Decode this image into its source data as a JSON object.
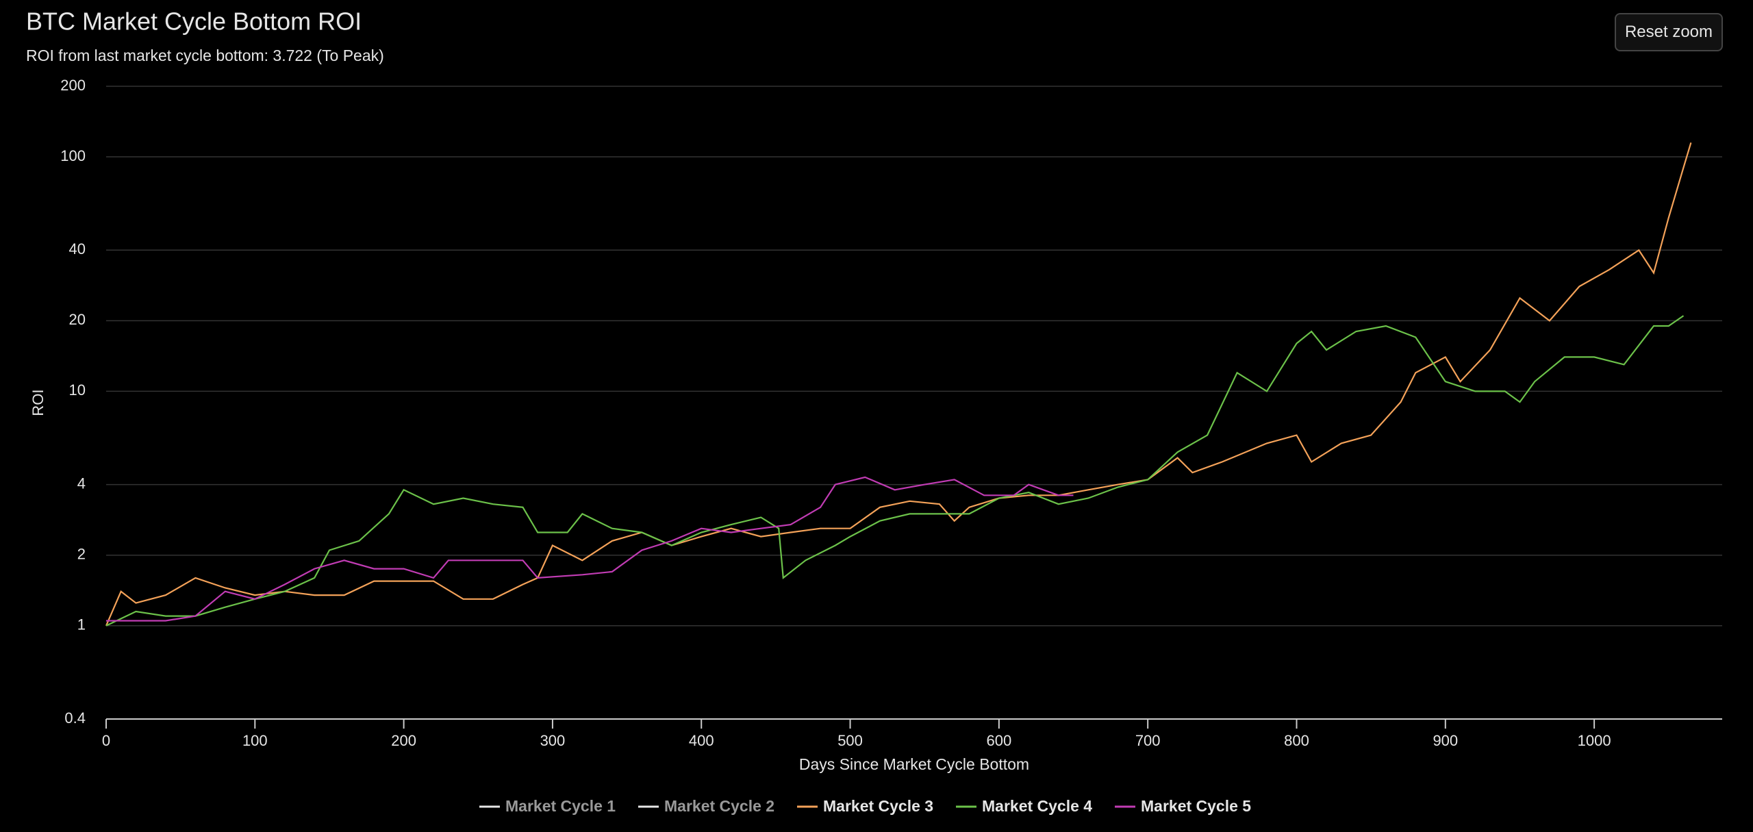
{
  "chart_data": {
    "type": "line",
    "title": "BTC Market Cycle Bottom ROI",
    "subtitle": "ROI from last market cycle bottom: 3.722 (To Peak)",
    "button": "Reset zoom",
    "x_label": "Days Since Market Cycle Bottom",
    "y_label": "ROI",
    "log_y": true,
    "grid": true,
    "xlim": [
      0,
      1086
    ],
    "xticks": [
      0,
      100,
      200,
      300,
      400,
      500,
      600,
      700,
      800,
      900,
      1000
    ],
    "ylim": [
      0.4,
      200
    ],
    "yticks": [
      0.4,
      1,
      2,
      4,
      10,
      20,
      40,
      100,
      200
    ],
    "series": [
      {
        "name": "Market Cycle 1",
        "color": "#e6e6e6",
        "visible": false,
        "x": [],
        "values": []
      },
      {
        "name": "Market Cycle 2",
        "color": "#e6e6e6",
        "visible": false,
        "x": [],
        "values": []
      },
      {
        "name": "Market Cycle 3",
        "color": "#f4a259",
        "visible": true,
        "x": [
          0,
          10,
          20,
          40,
          60,
          80,
          100,
          120,
          140,
          160,
          180,
          200,
          220,
          240,
          260,
          280,
          290,
          300,
          320,
          340,
          360,
          380,
          400,
          420,
          440,
          460,
          480,
          500,
          520,
          540,
          560,
          570,
          580,
          600,
          620,
          640,
          660,
          680,
          700,
          720,
          730,
          750,
          780,
          800,
          810,
          830,
          850,
          870,
          880,
          900,
          910,
          930,
          950,
          970,
          990,
          1010,
          1030,
          1040,
          1050,
          1060,
          1065
        ],
        "values": [
          1.0,
          1.4,
          1.25,
          1.35,
          1.6,
          1.45,
          1.35,
          1.4,
          1.35,
          1.35,
          1.55,
          1.55,
          1.55,
          1.3,
          1.3,
          1.5,
          1.6,
          2.2,
          1.9,
          2.3,
          2.5,
          2.2,
          2.4,
          2.6,
          2.4,
          2.5,
          2.6,
          2.6,
          3.2,
          3.4,
          3.3,
          2.8,
          3.2,
          3.5,
          3.6,
          3.6,
          3.8,
          4.0,
          4.2,
          5.2,
          4.5,
          5.0,
          6.0,
          6.5,
          5.0,
          6.0,
          6.5,
          9.0,
          12,
          14,
          11,
          15,
          25,
          20,
          28,
          33,
          40,
          32,
          55,
          90,
          115
        ]
      },
      {
        "name": "Market Cycle 4",
        "color": "#6cc24a",
        "visible": true,
        "x": [
          0,
          20,
          40,
          60,
          80,
          100,
          120,
          140,
          150,
          170,
          190,
          200,
          220,
          240,
          260,
          280,
          290,
          310,
          320,
          340,
          360,
          380,
          400,
          420,
          440,
          452,
          455,
          470,
          490,
          500,
          520,
          540,
          560,
          580,
          600,
          620,
          640,
          660,
          680,
          700,
          720,
          740,
          760,
          780,
          800,
          810,
          820,
          840,
          860,
          880,
          900,
          920,
          940,
          950,
          960,
          980,
          1000,
          1020,
          1040,
          1050,
          1060
        ],
        "values": [
          1.0,
          1.15,
          1.1,
          1.1,
          1.2,
          1.3,
          1.4,
          1.6,
          2.1,
          2.3,
          3.0,
          3.8,
          3.3,
          3.5,
          3.3,
          3.2,
          2.5,
          2.5,
          3.0,
          2.6,
          2.5,
          2.2,
          2.5,
          2.7,
          2.9,
          2.6,
          1.6,
          1.9,
          2.2,
          2.4,
          2.8,
          3.0,
          3.0,
          3.0,
          3.5,
          3.7,
          3.3,
          3.5,
          3.9,
          4.2,
          5.5,
          6.5,
          12,
          10,
          16,
          18,
          15,
          18,
          19,
          17,
          11,
          10,
          10,
          9,
          11,
          14,
          14,
          13,
          19,
          19,
          21
        ]
      },
      {
        "name": "Market Cycle 5",
        "color": "#c13cb4",
        "visible": true,
        "x": [
          0,
          20,
          40,
          60,
          80,
          100,
          120,
          140,
          160,
          180,
          200,
          220,
          230,
          260,
          280,
          290,
          320,
          340,
          360,
          380,
          400,
          420,
          440,
          460,
          480,
          490,
          510,
          530,
          550,
          570,
          590,
          610,
          620,
          640,
          650
        ],
        "values": [
          1.05,
          1.05,
          1.05,
          1.1,
          1.4,
          1.3,
          1.5,
          1.75,
          1.9,
          1.75,
          1.75,
          1.6,
          1.9,
          1.9,
          1.9,
          1.6,
          1.65,
          1.7,
          2.1,
          2.3,
          2.6,
          2.5,
          2.6,
          2.7,
          3.2,
          4.0,
          4.3,
          3.8,
          4.0,
          4.2,
          3.6,
          3.6,
          4.0,
          3.6,
          3.6
        ]
      }
    ]
  }
}
